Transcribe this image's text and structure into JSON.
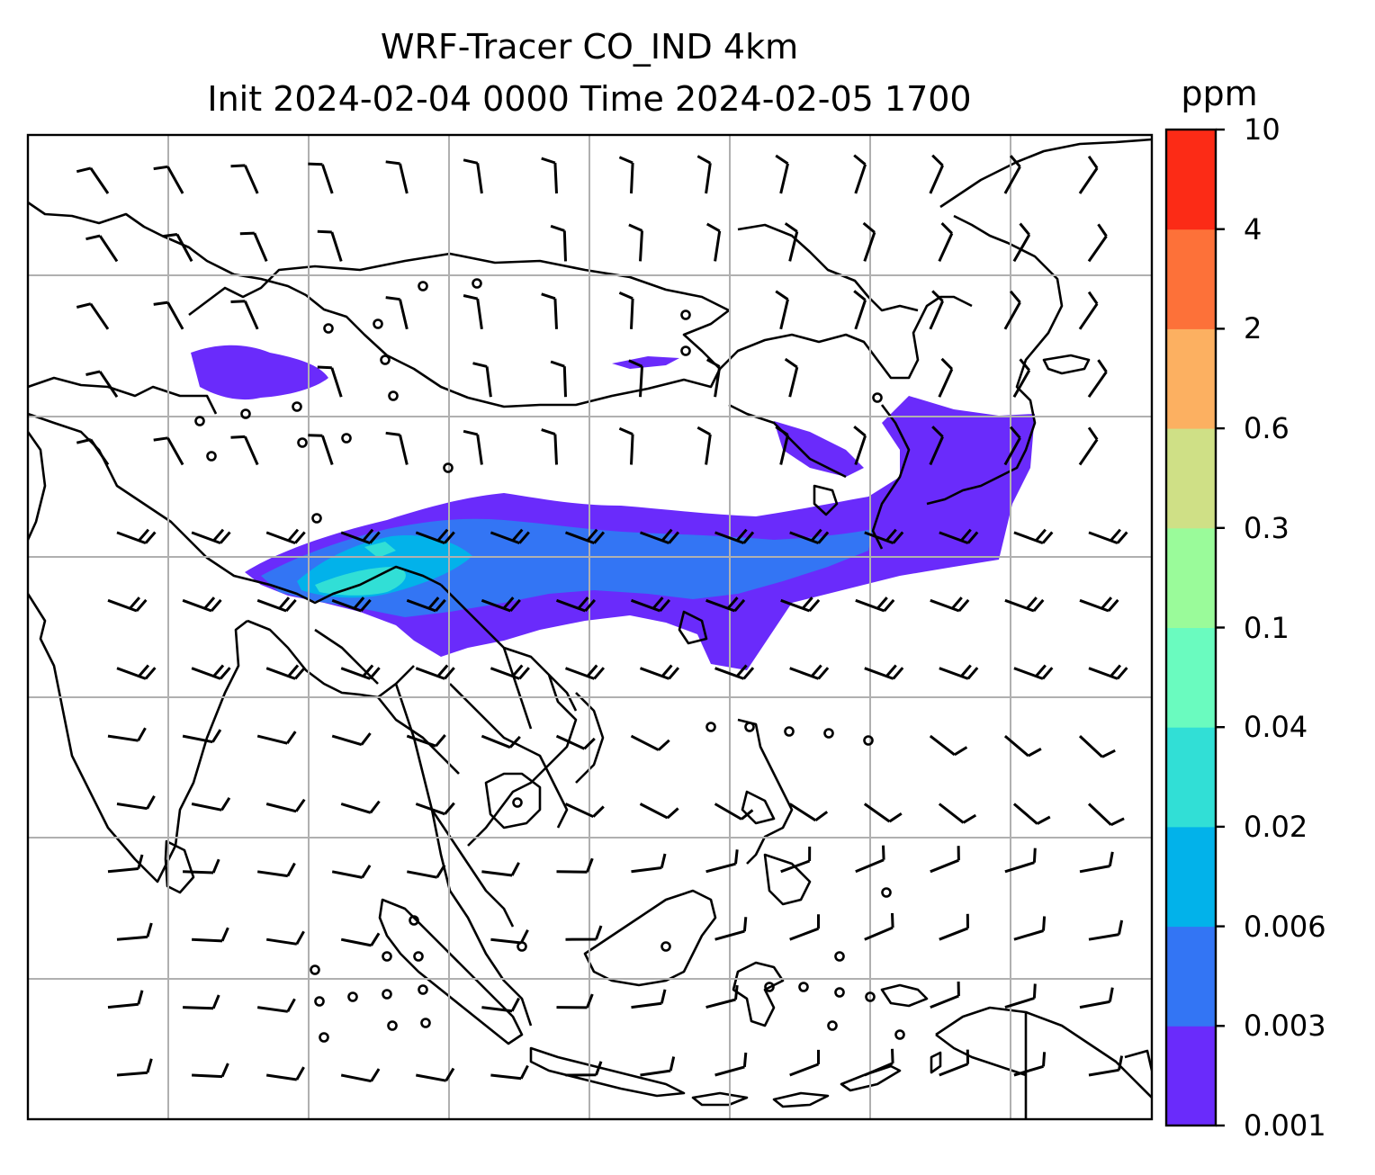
{
  "title": {
    "line1": "WRF-Tracer CO_IND 4km",
    "line2": "Init 2024-02-04 0000 Time 2024-02-05 1700"
  },
  "colorbar": {
    "unit": "ppm",
    "levels": [
      "0.001",
      "0.003",
      "0.006",
      "0.02",
      "0.04",
      "0.1",
      "0.3",
      "0.6",
      "2",
      "4",
      "10"
    ],
    "colors": [
      "#6a2bfb",
      "#3375f4",
      "#02b2ea",
      "#31dfd6",
      "#6afbbf",
      "#9afb9a",
      "#cfe086",
      "#fcb061",
      "#fd7139",
      "#fc2b16"
    ]
  },
  "map": {
    "gridlines": true,
    "plume_colors": {
      "lowest": "#6a2bfb",
      "low": "#3375f4",
      "mid": "#02b2ea",
      "core": "#31dfd6"
    },
    "coastline_color": "#000000",
    "grid_color": "#b0b0b0",
    "calm_marker": "circle",
    "wind_symbol": "barb"
  }
}
